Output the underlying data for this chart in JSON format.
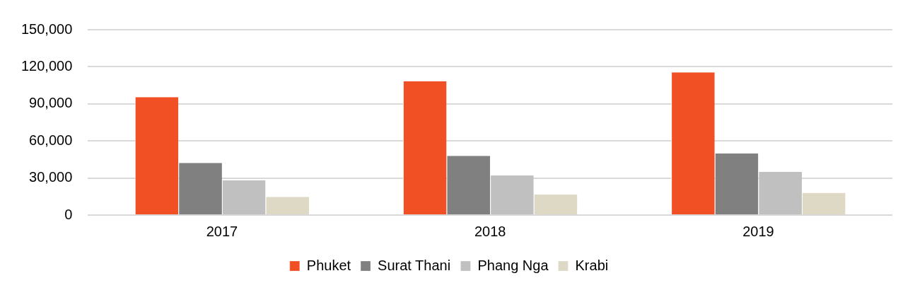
{
  "chart_data": {
    "type": "bar",
    "categories": [
      "2017",
      "2018",
      "2019"
    ],
    "series": [
      {
        "name": "Phuket",
        "color": "#f15025",
        "values": [
          95500,
          108400,
          115500
        ]
      },
      {
        "name": "Surat Thani",
        "color": "#808080",
        "values": [
          42200,
          48000,
          50000
        ]
      },
      {
        "name": "Phang Nga",
        "color": "#bfc0bf",
        "values": [
          28200,
          32000,
          35000
        ]
      },
      {
        "name": "Krabi",
        "color": "#ddd9c4",
        "values": [
          14700,
          16600,
          18000
        ]
      }
    ],
    "ylim": [
      0,
      150000
    ],
    "yticks": [
      0,
      {
        "value": 30000,
        "label": "30,000"
      },
      {
        "value": 60000,
        "label": "60,000"
      },
      {
        "value": 90000,
        "label": "90,000"
      },
      {
        "value": 120000,
        "label": "120,000"
      },
      {
        "value": 150000,
        "label": "150,000"
      }
    ],
    "grid": "y",
    "legend": "bottom"
  }
}
